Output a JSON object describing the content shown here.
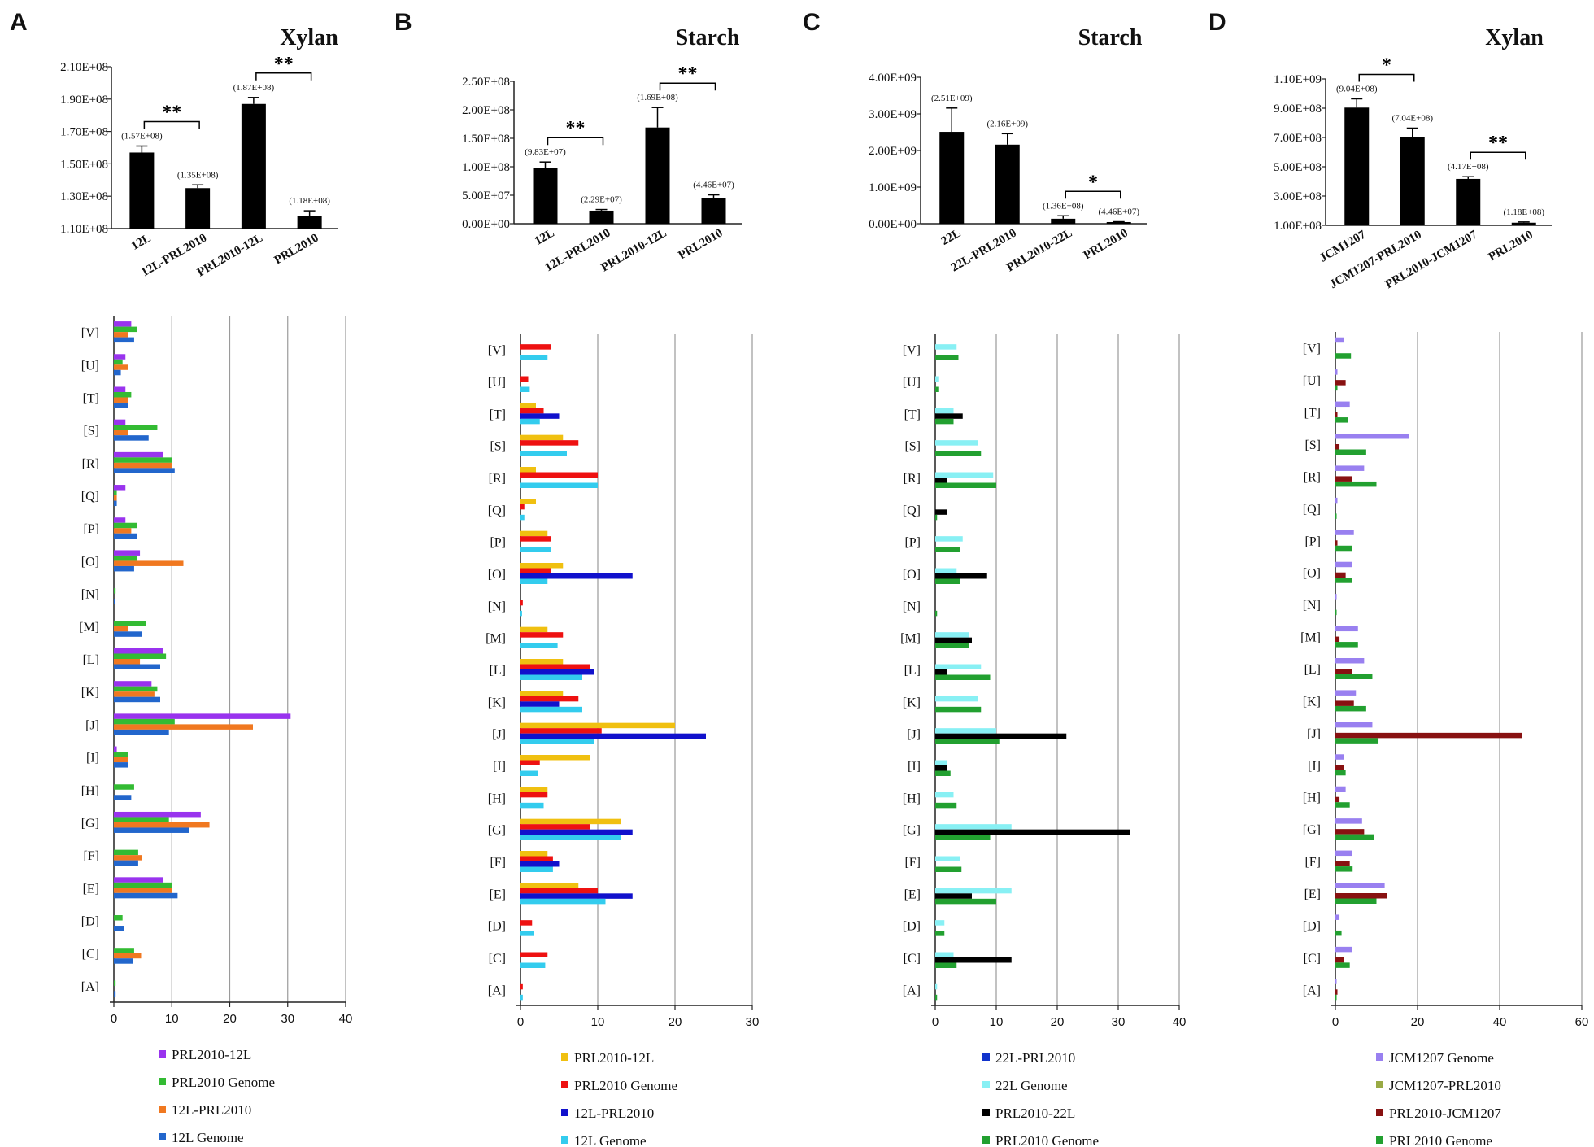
{
  "chart_data": [
    {
      "panel": "A",
      "type": "bar",
      "title": "Xylan",
      "top_chart": {
        "categories": [
          "12L",
          "12L-PRL2010",
          "PRL2010-12L",
          "PRL2010"
        ],
        "values": [
          157000000,
          135000000,
          187000000,
          118000000
        ],
        "errors": [
          4000000,
          2000000,
          4000000,
          3000000
        ],
        "value_labels": [
          "(1.57E+08)",
          "(1.35E+08)",
          "(1.87E+08)",
          "(1.18E+08)"
        ],
        "yticks": [
          "1.10E+08",
          "1.30E+08",
          "1.50E+08",
          "1.70E+08",
          "1.90E+08",
          "2.10E+08"
        ],
        "ylim": [
          110000000,
          210000000
        ],
        "significance": [
          {
            "from": 0,
            "to": 1,
            "label": "**"
          },
          {
            "from": 2,
            "to": 3,
            "label": "**"
          }
        ]
      },
      "cog_chart": {
        "type": "bar",
        "orientation": "horizontal",
        "categories": [
          "[V]",
          "[U]",
          "[T]",
          "[S]",
          "[R]",
          "[Q]",
          "[P]",
          "[O]",
          "[N]",
          "[M]",
          "[L]",
          "[K]",
          "[J]",
          "[I]",
          "[H]",
          "[G]",
          "[F]",
          "[E]",
          "[D]",
          "[C]",
          "[A]"
        ],
        "xticks": [
          "0",
          "10",
          "20",
          "30",
          "40"
        ],
        "xlim": [
          0,
          40
        ],
        "series": [
          {
            "name": "PRL2010-12L",
            "color": "#9933ee",
            "values": [
              3,
              2,
              2,
              2,
              8.5,
              2,
              2,
              4.5,
              0,
              0,
              8.5,
              6.5,
              30.5,
              0.5,
              0,
              15,
              0,
              8.5,
              0,
              0,
              0
            ]
          },
          {
            "name": "PRL2010 Genome",
            "color": "#33bb33",
            "values": [
              4,
              1.5,
              3,
              7.5,
              10,
              0.5,
              4,
              4,
              0.3,
              5.5,
              9,
              7.5,
              10.5,
              2.5,
              3.5,
              9.5,
              4.2,
              10,
              1.5,
              3.5,
              0.3
            ]
          },
          {
            "name": "12L-PRL2010",
            "color": "#f07820",
            "values": [
              2.5,
              2.5,
              2.5,
              2.5,
              10,
              0.5,
              3,
              12,
              0,
              2.5,
              4.5,
              7,
              24,
              2.5,
              0,
              16.5,
              4.8,
              10,
              0,
              4.7,
              0
            ]
          },
          {
            "name": "12L Genome",
            "color": "#2266cc",
            "values": [
              3.5,
              1.2,
              2.5,
              6,
              10.5,
              0.5,
              4,
              3.5,
              0.2,
              4.8,
              8,
              8,
              9.5,
              2.5,
              3,
              13,
              4.2,
              11,
              1.7,
              3.3,
              0.3
            ]
          }
        ]
      }
    },
    {
      "panel": "B",
      "type": "bar",
      "title": "Starch",
      "top_chart": {
        "categories": [
          "12L",
          "12L-PRL2010",
          "PRL2010-12L",
          "PRL2010"
        ],
        "values": [
          98300000,
          22900000,
          169000000,
          44600000
        ],
        "errors": [
          10000000,
          2000000,
          35000000,
          6000000
        ],
        "value_labels": [
          "(9.83E+07)",
          "(2.29E+07)",
          "(1.69E+08)",
          "(4.46E+07)"
        ],
        "yticks": [
          "0.00E+00",
          "5.00E+07",
          "1.00E+08",
          "1.50E+08",
          "2.00E+08",
          "2.50E+08"
        ],
        "ylim": [
          0,
          250000000
        ],
        "significance": [
          {
            "from": 0,
            "to": 1,
            "label": "**"
          },
          {
            "from": 2,
            "to": 3,
            "label": "**"
          }
        ]
      },
      "cog_chart": {
        "type": "bar",
        "orientation": "horizontal",
        "categories": [
          "[V]",
          "[U]",
          "[T]",
          "[S]",
          "[R]",
          "[Q]",
          "[P]",
          "[O]",
          "[N]",
          "[M]",
          "[L]",
          "[K]",
          "[J]",
          "[I]",
          "[H]",
          "[G]",
          "[F]",
          "[E]",
          "[D]",
          "[C]",
          "[A]"
        ],
        "xticks": [
          "0",
          "10",
          "20",
          "30"
        ],
        "xlim": [
          0,
          30
        ],
        "series": [
          {
            "name": "PRL2010-12L",
            "color": "#f0c010",
            "values": [
              0,
              0,
              2,
              5.5,
              2,
              2,
              3.5,
              5.5,
              0,
              3.5,
              5.5,
              5.5,
              20,
              9,
              3.5,
              13,
              3.5,
              7.5,
              0,
              0,
              0
            ]
          },
          {
            "name": "PRL2010 Genome",
            "color": "#ee1111",
            "values": [
              4,
              1,
              3,
              7.5,
              10,
              0.5,
              4,
              4,
              0.3,
              5.5,
              9,
              7.5,
              10.5,
              2.5,
              3.5,
              9,
              4.2,
              10,
              1.5,
              3.5,
              0.3
            ]
          },
          {
            "name": "12L-PRL2010",
            "color": "#1111cc",
            "values": [
              0,
              0,
              5,
              0,
              0,
              0,
              0,
              14.5,
              0,
              0,
              9.5,
              5,
              24,
              0,
              0,
              14.5,
              5,
              14.5,
              0,
              0,
              0
            ]
          },
          {
            "name": "12L Genome",
            "color": "#33ccee",
            "values": [
              3.5,
              1.2,
              2.5,
              6,
              10,
              0.5,
              4,
              3.5,
              0.2,
              4.8,
              8,
              8,
              9.5,
              2.3,
              3,
              13,
              4.2,
              11,
              1.7,
              3.2,
              0.3
            ]
          }
        ]
      }
    },
    {
      "panel": "C",
      "type": "bar",
      "title": "Starch",
      "top_chart": {
        "categories": [
          "22L",
          "22L-PRL2010",
          "PRL2010-22L",
          "PRL2010"
        ],
        "values": [
          2510000000,
          2160000000,
          136000000,
          44600000
        ],
        "errors": [
          650000000,
          300000000,
          80000000,
          10000000
        ],
        "value_labels": [
          "(2.51E+09)",
          "(2.16E+09)",
          "(1.36E+08)",
          "(4.46E+07)"
        ],
        "yticks": [
          "0.00E+00",
          "1.00E+09",
          "2.00E+09",
          "3.00E+09",
          "4.00E+09"
        ],
        "ylim": [
          0,
          4000000000
        ],
        "significance": [
          {
            "from": 2,
            "to": 3,
            "label": "*"
          }
        ]
      },
      "cog_chart": {
        "type": "bar",
        "orientation": "horizontal",
        "categories": [
          "[V]",
          "[U]",
          "[T]",
          "[S]",
          "[R]",
          "[Q]",
          "[P]",
          "[O]",
          "[N]",
          "[M]",
          "[L]",
          "[K]",
          "[J]",
          "[I]",
          "[H]",
          "[G]",
          "[F]",
          "[E]",
          "[D]",
          "[C]",
          "[A]"
        ],
        "xticks": [
          "0",
          "10",
          "20",
          "30",
          "40"
        ],
        "xlim": [
          0,
          40
        ],
        "series": [
          {
            "name": "22L-PRL2010",
            "color": "#1133cc",
            "values": [
              0,
              0,
              0,
              0,
              0,
              0,
              0,
              0,
              0,
              0,
              0,
              0,
              0,
              0,
              0,
              0,
              0,
              0,
              0,
              0,
              0
            ]
          },
          {
            "name": "22L Genome",
            "color": "#88f0f4",
            "values": [
              3.5,
              0.5,
              3,
              7,
              9.5,
              0,
              4.5,
              3.5,
              0,
              5.5,
              7.5,
              7,
              10,
              2,
              3,
              12.5,
              4,
              12.5,
              1.5,
              3,
              0.3
            ]
          },
          {
            "name": "PRL2010-22L",
            "color": "#000000",
            "values": [
              0,
              0,
              4.5,
              0,
              2,
              2,
              0,
              8.5,
              0,
              6,
              2,
              0,
              21.5,
              2,
              0,
              32,
              0,
              6,
              0,
              12.5,
              0
            ]
          },
          {
            "name": "PRL2010 Genome",
            "color": "#22a030",
            "values": [
              3.8,
              0.5,
              3,
              7.5,
              10,
              0.3,
              4,
              4,
              0.3,
              5.5,
              9,
              7.5,
              10.5,
              2.5,
              3.5,
              9,
              4.3,
              10,
              1.5,
              3.5,
              0.3
            ]
          }
        ]
      }
    },
    {
      "panel": "D",
      "type": "bar",
      "title": "Xylan",
      "top_chart": {
        "categories": [
          "JCM1207",
          "JCM1207-PRL2010",
          "PRL2010-JCM1207",
          "PRL2010"
        ],
        "values": [
          904000000,
          704000000,
          417000000,
          118000000
        ],
        "errors": [
          60000000,
          60000000,
          15000000,
          5000000
        ],
        "value_labels": [
          "(9.04E+08)",
          "(7.04E+08)",
          "(4.17E+08)",
          "(1.18E+08)"
        ],
        "yticks": [
          "1.00E+08",
          "3.00E+08",
          "5.00E+08",
          "7.00E+08",
          "9.00E+08",
          "1.10E+09"
        ],
        "ylim": [
          100000000,
          1100000000
        ],
        "significance": [
          {
            "from": 0,
            "to": 1,
            "label": "*"
          },
          {
            "from": 2,
            "to": 3,
            "label": "**"
          }
        ]
      },
      "cog_chart": {
        "type": "bar",
        "orientation": "horizontal",
        "categories": [
          "[V]",
          "[U]",
          "[T]",
          "[S]",
          "[R]",
          "[Q]",
          "[P]",
          "[O]",
          "[N]",
          "[M]",
          "[L]",
          "[K]",
          "[J]",
          "[I]",
          "[H]",
          "[G]",
          "[F]",
          "[E]",
          "[D]",
          "[C]",
          "[A]"
        ],
        "xticks": [
          "0",
          "20",
          "40",
          "60"
        ],
        "xlim": [
          0,
          60
        ],
        "series": [
          {
            "name": "JCM1207 Genome",
            "color": "#9980f0",
            "values": [
              2,
              0.5,
              3.5,
              18,
              7,
              0.5,
              4.5,
              4,
              0.3,
              5.5,
              7,
              5,
              9,
              2,
              2.5,
              6.5,
              4,
              12,
              1,
              4,
              0.3
            ]
          },
          {
            "name": "JCM1207-PRL2010",
            "color": "#99aa44",
            "values": [
              0,
              0,
              0,
              0,
              0,
              0,
              0,
              0,
              0,
              0,
              0,
              0,
              0,
              0,
              0,
              0,
              0,
              0,
              0,
              0,
              0
            ]
          },
          {
            "name": "PRL2010-JCM1207",
            "color": "#881111",
            "values": [
              0,
              2.5,
              0.5,
              1,
              4,
              0,
              0.5,
              2.5,
              0,
              1,
              4,
              4.5,
              45.5,
              2,
              1,
              7,
              3.5,
              12.5,
              0,
              2,
              0.5
            ]
          },
          {
            "name": "PRL2010 Genome",
            "color": "#22a030",
            "values": [
              3.8,
              0.5,
              3,
              7.5,
              10,
              0.3,
              4,
              4,
              0.3,
              5.5,
              9,
              7.5,
              10.5,
              2.5,
              3.5,
              9.5,
              4.2,
              10,
              1.5,
              3.5,
              0.3
            ]
          }
        ]
      }
    }
  ]
}
